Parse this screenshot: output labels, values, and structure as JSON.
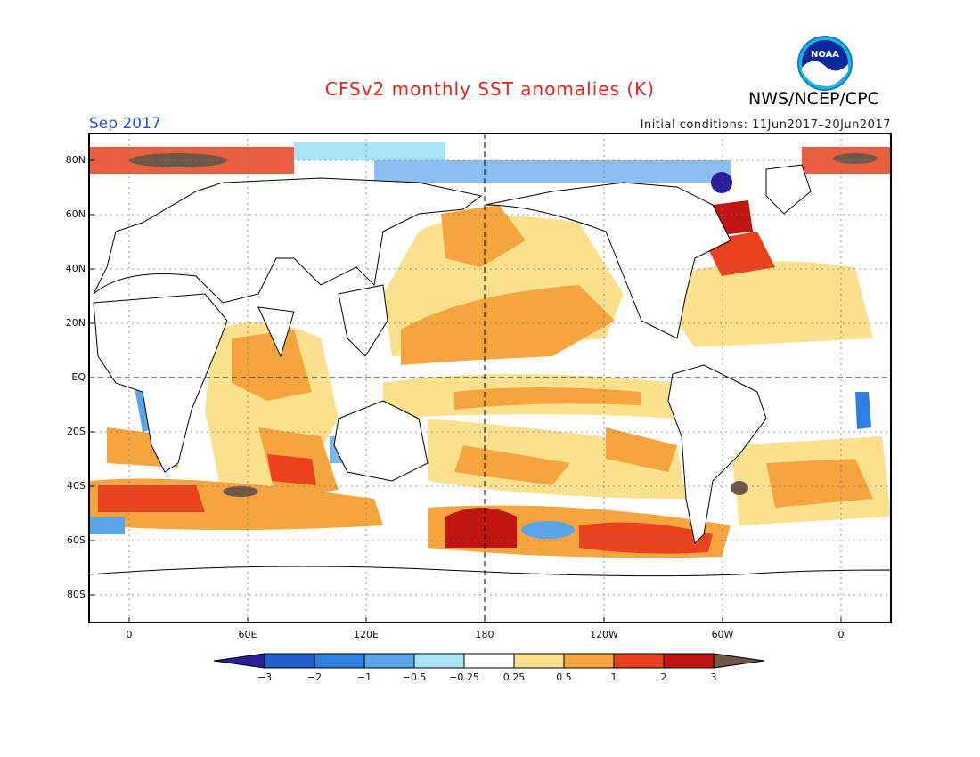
{
  "title": "CFSv2 monthly SST anomalies (K)",
  "agency": "NWS/NCEP/CPC",
  "logo_text": "NOAA",
  "month": "Sep 2017",
  "initial_conditions": "Initial conditions: 11Jun2017–20Jun2017",
  "lat_labels": [
    "80N",
    "60N",
    "40N",
    "20N",
    "EQ",
    "20S",
    "40S",
    "60S",
    "80S"
  ],
  "lon_labels": [
    "0",
    "60E",
    "120E",
    "180",
    "120W",
    "60W",
    "0"
  ],
  "colorbar": {
    "labels": [
      "−3",
      "−2",
      "−1",
      "−0.5",
      "−0.25",
      "0.25",
      "0.5",
      "1",
      "2",
      "3"
    ],
    "colors": [
      "#2b1f9a",
      "#1f5fcf",
      "#2e7fe0",
      "#5aa4ea",
      "#a8e4f4",
      "#ffffff",
      "#fbe08e",
      "#f6a43e",
      "#e8421e",
      "#c0140f",
      "#9a0a0a",
      "#6e5848"
    ]
  }
}
